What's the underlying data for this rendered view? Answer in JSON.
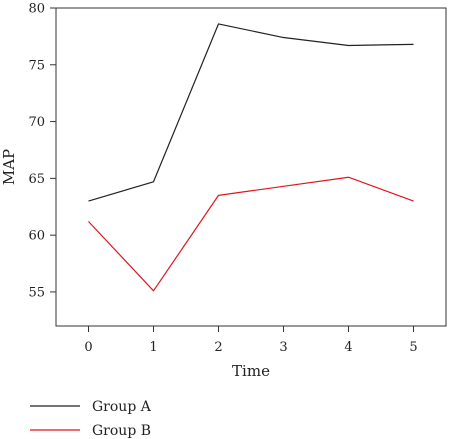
{
  "chart_data": {
    "type": "line",
    "title": "",
    "xlabel": "Time",
    "ylabel": "MAP",
    "x": [
      0,
      1,
      2,
      3,
      4,
      5
    ],
    "xlim": [
      -0.5,
      5.5
    ],
    "ylim": [
      52,
      80
    ],
    "yticks": [
      55,
      60,
      65,
      70,
      75,
      80
    ],
    "grid": false,
    "legend": "bottom-left",
    "series": [
      {
        "name": "Group A",
        "color": "#222222",
        "values": [
          63.0,
          64.7,
          78.6,
          77.4,
          76.7,
          76.8
        ]
      },
      {
        "name": "Group B",
        "color": "#e0161c",
        "values": [
          61.2,
          55.1,
          63.5,
          64.3,
          65.1,
          63.0
        ]
      }
    ]
  }
}
